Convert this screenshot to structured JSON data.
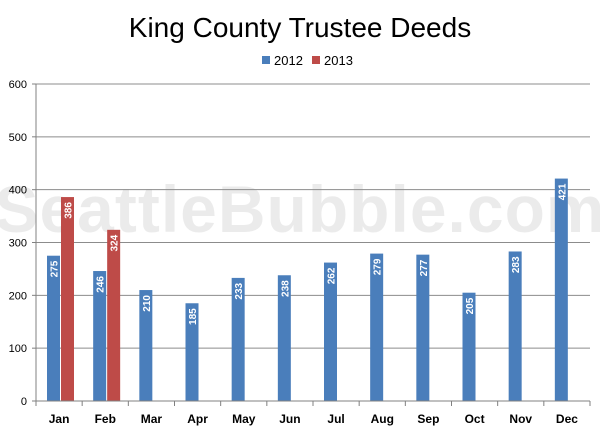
{
  "watermark": "SeattleBubble.com",
  "chart_data": {
    "type": "bar",
    "title": "King County Trustee Deeds",
    "xlabel": "",
    "ylabel": "",
    "categories": [
      "Jan",
      "Feb",
      "Mar",
      "Apr",
      "May",
      "Jun",
      "Jul",
      "Aug",
      "Sep",
      "Oct",
      "Nov",
      "Dec"
    ],
    "series": [
      {
        "name": "2012",
        "color": "#4a7ebb",
        "values": [
          275,
          246,
          210,
          185,
          233,
          238,
          262,
          279,
          277,
          205,
          283,
          421
        ]
      },
      {
        "name": "2013",
        "color": "#be4b48",
        "values": [
          386,
          324,
          null,
          null,
          null,
          null,
          null,
          null,
          null,
          null,
          null,
          null
        ]
      }
    ],
    "ylim": [
      0,
      600
    ],
    "yticks": [
      0,
      100,
      200,
      300,
      400,
      500,
      600
    ],
    "grid": true,
    "legend": "top-center",
    "data_labels": true
  }
}
